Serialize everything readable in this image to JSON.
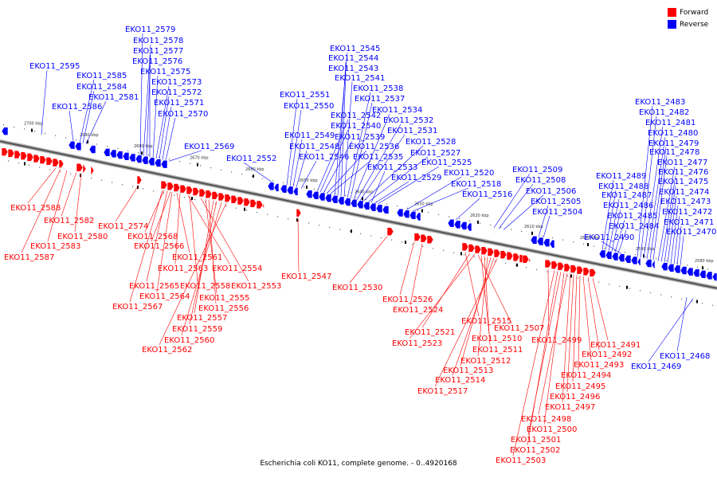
{
  "legend": {
    "forward_label": "Forward",
    "reverse_label": "Reverse",
    "forward_color": "#ff0000",
    "reverse_color": "#0000ff"
  },
  "caption": "Escherichia coli KO11, complete genome. - 0..4920168",
  "axis_ticks": [
    "2700 kbp",
    "2690 kbp",
    "2680 kbp",
    "2670 kbp",
    "2660 kbp",
    "2650 kbp",
    "2640 kbp",
    "2630 kbp",
    "2620 kbp",
    "2610 kbp",
    "2600 kbp",
    "2590 kbp",
    "2580 kbp"
  ],
  "reverse_genes": [
    "EKO11_2579",
    "EKO11_2578",
    "EKO11_2577",
    "EKO11_2576",
    "EKO11_2595",
    "EKO11_2575",
    "EKO11_2585",
    "EKO11_2573",
    "EKO11_2584",
    "EKO11_2572",
    "EKO11_2581",
    "EKO11_2571",
    "EKO11_2586",
    "EKO11_2570",
    "EKO11_2569",
    "EKO11_2552",
    "EKO11_2545",
    "EKO11_2544",
    "EKO11_2543",
    "EKO11_2541",
    "EKO11_2538",
    "EKO11_2551",
    "EKO11_2537",
    "EKO11_2550",
    "EKO11_2534",
    "EKO11_2542",
    "EKO11_2532",
    "EKO11_2540",
    "EKO11_2531",
    "EKO11_2549",
    "EKO11_2539",
    "EKO11_2528",
    "EKO11_2548",
    "EKO11_2536",
    "EKO11_2527",
    "EKO11_2546",
    "EKO11_2535",
    "EKO11_2525",
    "EKO11_2533",
    "EKO11_2520",
    "EKO11_2529",
    "EKO11_2518",
    "EKO11_2516",
    "EKO11_2509",
    "EKO11_2508",
    "EKO11_2506",
    "EKO11_2505",
    "EKO11_2504",
    "EKO11_2483",
    "EKO11_2482",
    "EKO11_2481",
    "EKO11_2480",
    "EKO11_2479",
    "EKO11_2478",
    "EKO11_2477",
    "EKO11_2489",
    "EKO11_2476",
    "EKO11_2488",
    "EKO11_2475",
    "EKO11_2487",
    "EKO11_2474",
    "EKO11_2486",
    "EKO11_2473",
    "EKO11_2485",
    "EKO11_2472",
    "EKO11_2484",
    "EKO11_2471",
    "EKO11_2470",
    "EKO11_2490",
    "EKO11_2468",
    "EKO11_2469"
  ],
  "forward_genes": [
    "EKO11_2588",
    "EKO11_2582",
    "EKO11_2574",
    "EKO11_2580",
    "EKO11_2583",
    "EKO11_2587",
    "EKO11_2568",
    "EKO11_2566",
    "EKO11_2561",
    "EKO11_2563",
    "EKO11_2554",
    "EKO11_2547",
    "EKO11_2558",
    "EKO11_2565",
    "EKO11_2553",
    "EKO11_2564",
    "EKO11_2555",
    "EKO11_2567",
    "EKO11_2556",
    "EKO11_2557",
    "EKO11_2559",
    "EKO11_2560",
    "EKO11_2562",
    "EKO11_2530",
    "EKO11_2526",
    "EKO11_2524",
    "EKO11_2515",
    "EKO11_2521",
    "EKO11_2507",
    "EKO11_2523",
    "EKO11_2510",
    "EKO11_2511",
    "EKO11_2512",
    "EKO11_2513",
    "EKO11_2514",
    "EKO11_2517",
    "EKO11_2491",
    "EKO11_2499",
    "EKO11_2492",
    "EKO11_2493",
    "EKO11_2494",
    "EKO11_2495",
    "EKO11_2496",
    "EKO11_2497",
    "EKO11_2498",
    "EKO11_2500",
    "EKO11_2501",
    "EKO11_2502",
    "EKO11_2503"
  ]
}
